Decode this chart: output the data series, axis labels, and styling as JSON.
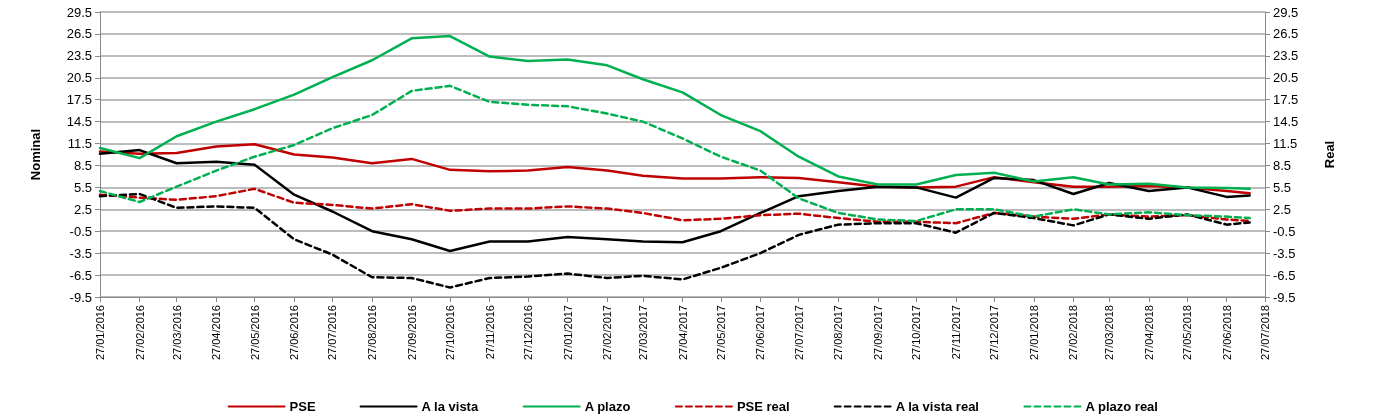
{
  "chart_data": {
    "type": "line",
    "ylabel": "Nominal",
    "y2label": "Real",
    "x": [
      "2016-01-27",
      "2016-02-27",
      "2016-03-27",
      "2016-04-27",
      "2016-05-27",
      "2016-06-27",
      "2016-07-27",
      "2016-08-27",
      "2016-09-27",
      "2016-10-27",
      "2016-11-27",
      "2016-12-27",
      "2017-01-27",
      "2017-02-27",
      "2017-03-27",
      "2017-04-27",
      "2017-05-27",
      "2017-06-27",
      "2017-07-27",
      "2017-08-27",
      "2017-09-27",
      "2017-10-27",
      "2017-11-27",
      "2017-12-27",
      "2018-01-27",
      "2018-02-27",
      "2018-03-27",
      "2018-04-27",
      "2018-05-27",
      "2018-06-27",
      "2018-07-15"
    ],
    "series": [
      {
        "name": "PSE",
        "color": "#c00000",
        "line_style": "solid",
        "values": [
          10.4,
          10.1,
          10.2,
          11.1,
          11.4,
          10.0,
          9.6,
          8.8,
          9.4,
          7.9,
          7.7,
          7.8,
          8.3,
          7.8,
          7.1,
          6.7,
          6.7,
          6.9,
          6.8,
          6.2,
          5.6,
          5.5,
          5.6,
          6.9,
          6.2,
          5.6,
          5.6,
          5.7,
          5.5,
          5.0,
          4.7
        ]
      },
      {
        "name": "A la vista",
        "color": "#000000",
        "line_style": "solid",
        "values": [
          10.1,
          10.6,
          8.8,
          9.0,
          8.6,
          4.5,
          2.2,
          -0.5,
          -1.6,
          -3.2,
          -1.9,
          -1.9,
          -1.3,
          -1.6,
          -1.9,
          -2.0,
          -0.5,
          2.0,
          4.3,
          5.0,
          5.6,
          5.5,
          4.1,
          6.8,
          6.5,
          4.6,
          6.1,
          5.0,
          5.5,
          4.2,
          4.4
        ]
      },
      {
        "name": "A plazo",
        "color": "#00b050",
        "line_style": "solid",
        "values": [
          10.9,
          9.5,
          12.5,
          14.5,
          16.2,
          18.2,
          20.6,
          22.9,
          25.9,
          26.2,
          23.4,
          22.8,
          23.0,
          22.2,
          20.3,
          18.5,
          15.4,
          13.2,
          9.7,
          7.0,
          5.9,
          5.9,
          7.2,
          7.5,
          6.3,
          6.9,
          5.9,
          6.0,
          5.5,
          5.4,
          5.3
        ]
      },
      {
        "name": "PSE real",
        "color": "#c00000",
        "line_style": "dashed",
        "values": [
          4.5,
          4.1,
          3.8,
          4.3,
          5.3,
          3.4,
          3.1,
          2.6,
          3.2,
          2.3,
          2.6,
          2.6,
          2.9,
          2.6,
          2.0,
          1.0,
          1.2,
          1.7,
          1.9,
          1.3,
          0.8,
          0.8,
          0.6,
          2.0,
          1.5,
          1.2,
          1.8,
          1.5,
          1.7,
          1.1,
          0.9
        ]
      },
      {
        "name": "A la vista real",
        "color": "#000000",
        "line_style": "dashed",
        "values": [
          4.3,
          4.6,
          2.7,
          2.9,
          2.7,
          -1.6,
          -3.7,
          -6.8,
          -6.9,
          -8.2,
          -6.9,
          -6.7,
          -6.3,
          -6.9,
          -6.6,
          -7.1,
          -5.5,
          -3.5,
          -1.0,
          0.4,
          0.6,
          0.6,
          -0.7,
          2.0,
          1.3,
          0.3,
          1.8,
          1.2,
          1.8,
          0.4,
          0.7
        ]
      },
      {
        "name": "A plazo real",
        "color": "#00b050",
        "line_style": "dashed",
        "values": [
          5.0,
          3.5,
          5.6,
          7.8,
          9.7,
          11.3,
          13.6,
          15.4,
          18.7,
          19.4,
          17.2,
          16.8,
          16.6,
          15.6,
          14.5,
          12.2,
          9.7,
          7.8,
          4.0,
          2.0,
          1.1,
          0.9,
          2.5,
          2.5,
          1.5,
          2.5,
          1.8,
          2.1,
          1.7,
          1.5,
          1.3
        ]
      }
    ],
    "xlim": [
      "2016-01-27",
      "2018-07-27"
    ],
    "xticks": [
      {
        "value": "2016-01-27",
        "label": "27/01/2016"
      },
      {
        "value": "2016-02-27",
        "label": "27/02/2016"
      },
      {
        "value": "2016-03-27",
        "label": "27/03/2016"
      },
      {
        "value": "2016-04-27",
        "label": "27/04/2016"
      },
      {
        "value": "2016-05-27",
        "label": "27/05/2016"
      },
      {
        "value": "2016-06-27",
        "label": "27/06/2016"
      },
      {
        "value": "2016-07-27",
        "label": "27/07/2016"
      },
      {
        "value": "2016-08-27",
        "label": "27/08/2016"
      },
      {
        "value": "2016-09-27",
        "label": "27/09/2016"
      },
      {
        "value": "2016-10-27",
        "label": "27/10/2016"
      },
      {
        "value": "2016-11-27",
        "label": "27/11/2016"
      },
      {
        "value": "2016-12-27",
        "label": "27/12/2016"
      },
      {
        "value": "2017-01-27",
        "label": "27/01/2017"
      },
      {
        "value": "2017-02-27",
        "label": "27/02/2017"
      },
      {
        "value": "2017-03-27",
        "label": "27/03/2017"
      },
      {
        "value": "2017-04-27",
        "label": "27/04/2017"
      },
      {
        "value": "2017-05-27",
        "label": "27/05/2017"
      },
      {
        "value": "2017-06-27",
        "label": "27/06/2017"
      },
      {
        "value": "2017-07-27",
        "label": "27/07/2017"
      },
      {
        "value": "2017-08-27",
        "label": "27/08/2017"
      },
      {
        "value": "2017-09-27",
        "label": "27/09/2017"
      },
      {
        "value": "2017-10-27",
        "label": "27/10/2017"
      },
      {
        "value": "2017-11-27",
        "label": "27/11/2017"
      },
      {
        "value": "2017-12-27",
        "label": "27/12/2017"
      },
      {
        "value": "2018-01-27",
        "label": "27/01/2018"
      },
      {
        "value": "2018-02-27",
        "label": "27/02/2018"
      },
      {
        "value": "2018-03-27",
        "label": "27/03/2018"
      },
      {
        "value": "2018-04-27",
        "label": "27/04/2018"
      },
      {
        "value": "2018-05-27",
        "label": "27/05/2018"
      },
      {
        "value": "2018-06-27",
        "label": "27/06/2018"
      },
      {
        "value": "2018-07-27",
        "label": "27/07/2018"
      }
    ],
    "ylim": [
      -9.5,
      29.5
    ],
    "yticks": [
      -9.5,
      -6.5,
      -3.5,
      -0.5,
      2.5,
      5.5,
      8.5,
      11.5,
      14.5,
      17.5,
      20.5,
      23.5,
      26.5,
      29.5
    ],
    "y2lim": [
      -9.5,
      29.5
    ],
    "y2ticks": [
      -9.5,
      -6.5,
      -3.5,
      -0.5,
      2.5,
      5.5,
      8.5,
      11.5,
      14.5,
      17.5,
      20.5,
      23.5,
      26.5,
      29.5
    ],
    "grid": "y",
    "legend": "bottom",
    "marker": "none"
  }
}
